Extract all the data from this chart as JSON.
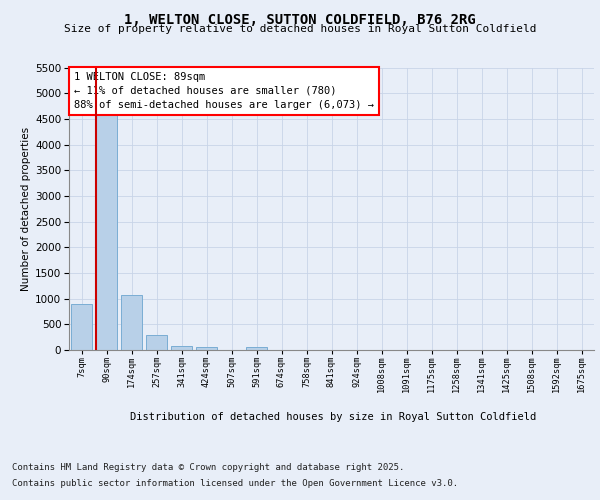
{
  "title": "1, WELTON CLOSE, SUTTON COLDFIELD, B76 2RG",
  "subtitle": "Size of property relative to detached houses in Royal Sutton Coldfield",
  "xlabel": "Distribution of detached houses by size in Royal Sutton Coldfield",
  "ylabel": "Number of detached properties",
  "categories": [
    "7sqm",
    "90sqm",
    "174sqm",
    "257sqm",
    "341sqm",
    "424sqm",
    "507sqm",
    "591sqm",
    "674sqm",
    "758sqm",
    "841sqm",
    "924sqm",
    "1008sqm",
    "1091sqm",
    "1175sqm",
    "1258sqm",
    "1341sqm",
    "1425sqm",
    "1508sqm",
    "1592sqm",
    "1675sqm"
  ],
  "values": [
    900,
    4600,
    1075,
    300,
    75,
    50,
    0,
    50,
    0,
    0,
    0,
    0,
    0,
    0,
    0,
    0,
    0,
    0,
    0,
    0,
    0
  ],
  "bar_color": "#b8d0e8",
  "bar_edgecolor": "#7aadd4",
  "property_line_color": "#cc0000",
  "annotation_text": "1 WELTON CLOSE: 89sqm\n← 11% of detached houses are smaller (780)\n88% of semi-detached houses are larger (6,073) →",
  "ylim": [
    0,
    5500
  ],
  "yticks": [
    0,
    500,
    1000,
    1500,
    2000,
    2500,
    3000,
    3500,
    4000,
    4500,
    5000,
    5500
  ],
  "grid_color": "#c8d4e8",
  "background_color": "#e8eef8",
  "footer_line1": "Contains HM Land Registry data © Crown copyright and database right 2025.",
  "footer_line2": "Contains public sector information licensed under the Open Government Licence v3.0."
}
